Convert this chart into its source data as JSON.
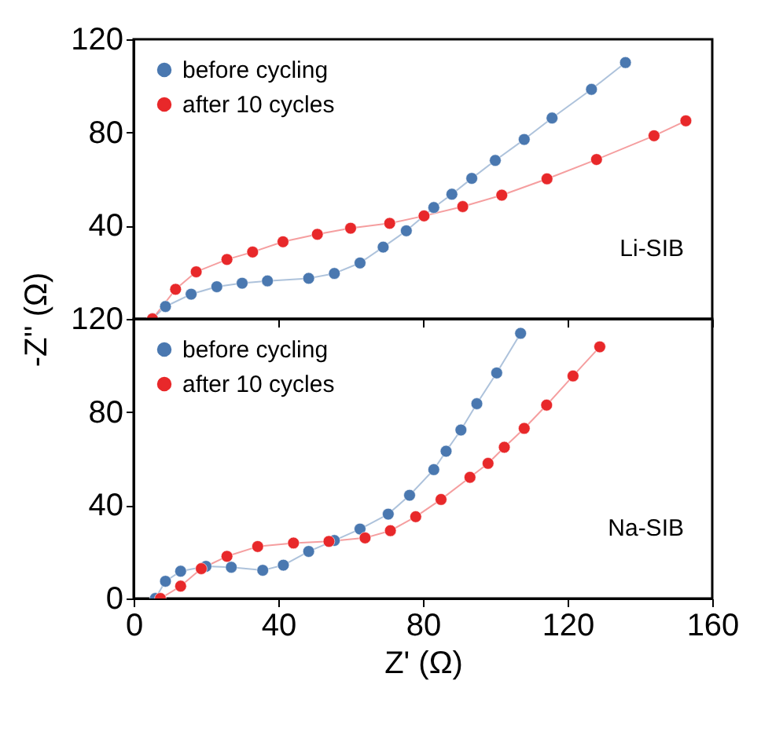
{
  "chart_data": [
    {
      "type": "line",
      "ylabel": "-Z'' (Ω)",
      "xlim": [
        0,
        160
      ],
      "xticks": [
        0,
        40,
        80,
        120,
        160
      ],
      "ylim": [
        0,
        120
      ],
      "yticks": [
        {
          "value": 0,
          "label": null
        },
        40,
        80,
        120
      ],
      "tick_labels": "y",
      "legend": "top left",
      "marker": "circle",
      "line_style": "solid",
      "annotations": [
        "Li-SIB"
      ],
      "series": [
        {
          "name": "before cycling",
          "color": "#4a78b0",
          "x": [
            5.2,
            8.8,
            15.9,
            23,
            30,
            37,
            48.4,
            55.5,
            62.6,
            69,
            75.4,
            83,
            88,
            93.5,
            100,
            108,
            115.7,
            126.6,
            136
          ],
          "values": [
            0,
            5.3,
            10.6,
            13.8,
            15.3,
            16.3,
            17.4,
            19.5,
            24,
            30.8,
            37.8,
            47.8,
            53.5,
            60.3,
            68,
            77,
            86.2,
            98.5,
            110
          ]
        },
        {
          "name": "after 10 cycles",
          "color": "#e8282a",
          "x": [
            5.2,
            11.6,
            17.3,
            25.8,
            32.9,
            41.3,
            50.8,
            60,
            70.8,
            80.3,
            91,
            101.8,
            114.3,
            128,
            143.9,
            152.7
          ],
          "values": [
            0,
            12.7,
            20.2,
            25.5,
            28.7,
            33.1,
            36.3,
            38.9,
            41,
            44.2,
            48.2,
            53.1,
            60.1,
            68.4,
            78.6,
            85
          ]
        }
      ]
    },
    {
      "type": "line",
      "xlabel": "Z' (Ω)",
      "xlim": [
        0,
        160
      ],
      "xticks": [
        0,
        40,
        80,
        120,
        160
      ],
      "ylim": [
        0,
        120
      ],
      "yticks": [
        0,
        40,
        80,
        120
      ],
      "legend": "top left",
      "marker": "circle",
      "line_style": "solid",
      "annotations": [
        "Na-SIB"
      ],
      "series": [
        {
          "name": "before cycling",
          "color": "#4a78b0",
          "x": [
            6,
            8.8,
            13,
            20,
            27,
            35.7,
            41.4,
            48.4,
            55.5,
            62.6,
            70.4,
            76.3,
            83,
            86.4,
            90.5,
            94.9,
            100.4,
            107
          ],
          "values": [
            0,
            7.4,
            11.7,
            13.8,
            13.4,
            12.1,
            14.3,
            20.2,
            24.9,
            29.8,
            36.2,
            44.3,
            55.3,
            63.2,
            72.3,
            83.6,
            96.8,
            113.8
          ]
        },
        {
          "name": "after 10 cycles",
          "color": "#e8282a",
          "x": [
            7.4,
            13,
            18.7,
            25.8,
            34.3,
            44.2,
            54,
            64,
            71,
            78,
            85,
            93,
            98,
            102.5,
            108,
            114.2,
            121.5,
            128.9
          ],
          "values": [
            0,
            5.3,
            12.8,
            18.1,
            22.3,
            23.8,
            24.5,
            26,
            29.1,
            35.1,
            42.5,
            52,
            58,
            64.9,
            73,
            83,
            95.5,
            108
          ]
        }
      ]
    }
  ]
}
